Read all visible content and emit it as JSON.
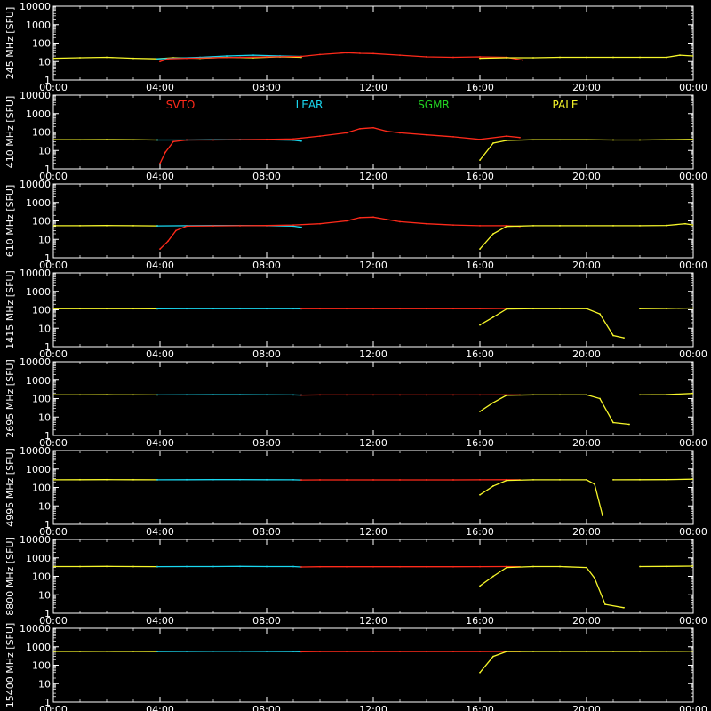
{
  "colors": {
    "background": "#000000",
    "axes": "#ffffff",
    "SVTO": "#ff2a1a",
    "LEAR": "#1ad8f0",
    "SGMR": "#22d422",
    "PALE": "#f6f62a"
  },
  "x_ticks": [
    "00:00",
    "04:00",
    "08:00",
    "12:00",
    "16:00",
    "20:00",
    "00:00"
  ],
  "y_ticks": [
    "1",
    "10",
    "100",
    "1000",
    "10000"
  ],
  "legend": [
    {
      "name": "SVTO",
      "color": "#ff2a1a"
    },
    {
      "name": "LEAR",
      "color": "#1ad8f0"
    },
    {
      "name": "SGMR",
      "color": "#22d422"
    },
    {
      "name": "PALE",
      "color": "#f6f62a"
    }
  ],
  "chart_data": [
    {
      "type": "line",
      "ylabel": "245 MHz [SFU]",
      "x_unit": "hours UT",
      "xlim": [
        0,
        24
      ],
      "ylim": [
        1,
        10000
      ],
      "y_scale": "log",
      "grid": false,
      "series": [
        {
          "name": "PALE",
          "x": [
            0,
            1,
            2,
            3,
            3.9,
            4.5,
            5.5,
            6.5,
            7.5,
            8.5,
            9.3
          ],
          "y": [
            15,
            16,
            17,
            15,
            14,
            16,
            15,
            17,
            16,
            18,
            17
          ]
        },
        {
          "name": "LEAR",
          "x": [
            3.9,
            4.5,
            5.5,
            6.5,
            7.5,
            8.5,
            9.3
          ],
          "y": [
            14,
            15,
            17,
            20,
            22,
            20,
            19
          ]
        },
        {
          "name": "SVTO",
          "x": [
            4.0,
            4.3,
            5.0,
            6.0,
            7.0,
            8.0,
            9.3,
            10.0,
            11.0,
            11.5,
            12.0,
            13.0,
            14.0,
            15.0,
            16.0,
            17.0,
            17.6
          ],
          "y": [
            10,
            14,
            15,
            16,
            17,
            18,
            19,
            24,
            30,
            28,
            27,
            22,
            18,
            17,
            18,
            17,
            12
          ]
        },
        {
          "name": "PALE",
          "x": [
            16.0,
            17.0,
            18.0,
            19.0,
            20.0,
            21.0,
            22.0,
            23.0,
            23.5,
            24
          ],
          "y": [
            15,
            16,
            16,
            17,
            17,
            17,
            17,
            17,
            22,
            20
          ]
        }
      ]
    },
    {
      "type": "line",
      "ylabel": "410 MHz [SFU]",
      "x_unit": "hours UT",
      "xlim": [
        0,
        24
      ],
      "ylim": [
        1,
        10000
      ],
      "y_scale": "log",
      "grid": false,
      "series": [
        {
          "name": "PALE",
          "x": [
            0,
            1,
            2,
            3,
            3.9
          ],
          "y": [
            38,
            38,
            39,
            38,
            37
          ]
        },
        {
          "name": "LEAR",
          "x": [
            3.9,
            5,
            6,
            7,
            8,
            9,
            9.3
          ],
          "y": [
            37,
            37,
            38,
            39,
            38,
            36,
            32
          ]
        },
        {
          "name": "SVTO",
          "x": [
            4.0,
            4.2,
            4.5,
            5,
            6,
            7,
            8,
            9,
            10,
            11,
            11.5,
            12,
            12.5,
            13,
            14,
            15,
            16,
            17,
            17.5
          ],
          "y": [
            2,
            8,
            30,
            37,
            37,
            38,
            40,
            42,
            60,
            90,
            150,
            170,
            110,
            90,
            70,
            55,
            40,
            60,
            50
          ]
        },
        {
          "name": "PALE",
          "x": [
            16.0,
            16.5,
            17.0,
            18.0,
            19.0,
            20.0,
            21.0,
            22.0,
            23.0,
            24
          ],
          "y": [
            3,
            25,
            35,
            38,
            38,
            38,
            37,
            37,
            38,
            40
          ]
        }
      ]
    },
    {
      "type": "line",
      "ylabel": "610 MHz [SFU]",
      "x_unit": "hours UT",
      "xlim": [
        0,
        24
      ],
      "ylim": [
        1,
        10000
      ],
      "y_scale": "log",
      "grid": false,
      "series": [
        {
          "name": "PALE",
          "x": [
            0,
            1,
            2,
            3,
            3.9
          ],
          "y": [
            55,
            55,
            56,
            55,
            54
          ]
        },
        {
          "name": "LEAR",
          "x": [
            3.9,
            5,
            6,
            7,
            8,
            9,
            9.3
          ],
          "y": [
            54,
            55,
            56,
            56,
            55,
            52,
            45
          ]
        },
        {
          "name": "SVTO",
          "x": [
            4.0,
            4.3,
            4.6,
            5,
            6,
            7,
            8,
            9,
            10,
            11,
            11.5,
            12,
            12.5,
            13,
            14,
            15,
            16,
            17,
            17.5
          ],
          "y": [
            3,
            8,
            30,
            52,
            54,
            55,
            56,
            60,
            70,
            100,
            150,
            160,
            120,
            90,
            70,
            60,
            55,
            55,
            50
          ]
        },
        {
          "name": "PALE",
          "x": [
            16.0,
            16.5,
            17.0,
            18.0,
            19.0,
            20.0,
            21.0,
            22.0,
            23.0,
            23.7,
            24
          ],
          "y": [
            3,
            20,
            50,
            55,
            55,
            55,
            55,
            55,
            57,
            70,
            60
          ]
        }
      ]
    },
    {
      "type": "line",
      "ylabel": "1415 MHz [SFU]",
      "x_unit": "hours UT",
      "xlim": [
        0,
        24
      ],
      "ylim": [
        1,
        10000
      ],
      "y_scale": "log",
      "grid": false,
      "series": [
        {
          "name": "PALE",
          "x": [
            0,
            1,
            2,
            3,
            3.9
          ],
          "y": [
            115,
            115,
            116,
            115,
            114
          ]
        },
        {
          "name": "LEAR",
          "x": [
            3.9,
            5,
            6,
            7,
            8,
            9,
            9.3
          ],
          "y": [
            114,
            115,
            115,
            116,
            115,
            115,
            114
          ]
        },
        {
          "name": "SVTO",
          "x": [
            9.3,
            10,
            11,
            12,
            13,
            14,
            15,
            16,
            17,
            17.5
          ],
          "y": [
            115,
            115,
            115,
            115,
            115,
            115,
            115,
            116,
            118,
            115
          ]
        },
        {
          "name": "PALE",
          "x": [
            16.0,
            16.5,
            17.0,
            18.0,
            19.0,
            20.0,
            20.5,
            21.0,
            21.4
          ],
          "y": [
            15,
            40,
            110,
            115,
            115,
            115,
            60,
            4,
            3
          ]
        },
        {
          "name": "PALE",
          "x": [
            22.0,
            23.0,
            24
          ],
          "y": [
            115,
            118,
            125
          ]
        }
      ]
    },
    {
      "type": "line",
      "ylabel": "2695 MHz [SFU]",
      "x_unit": "hours UT",
      "xlim": [
        0,
        24
      ],
      "ylim": [
        1,
        10000
      ],
      "y_scale": "log",
      "grid": false,
      "series": [
        {
          "name": "PALE",
          "x": [
            0,
            1,
            2,
            3,
            3.9
          ],
          "y": [
            160,
            160,
            162,
            160,
            158
          ]
        },
        {
          "name": "LEAR",
          "x": [
            3.9,
            5,
            6,
            7,
            8,
            9,
            9.3
          ],
          "y": [
            158,
            160,
            162,
            162,
            160,
            158,
            155
          ]
        },
        {
          "name": "SVTO",
          "x": [
            9.3,
            10,
            11,
            12,
            13,
            14,
            15,
            16,
            17,
            17.5
          ],
          "y": [
            155,
            158,
            158,
            158,
            157,
            157,
            157,
            158,
            160,
            158
          ]
        },
        {
          "name": "PALE",
          "x": [
            16.0,
            16.5,
            17.0,
            18.0,
            19.0,
            20.0,
            20.5,
            21.0,
            21.6
          ],
          "y": [
            20,
            60,
            150,
            160,
            160,
            160,
            100,
            5,
            4
          ]
        },
        {
          "name": "PALE",
          "x": [
            22.0,
            23.0,
            24
          ],
          "y": [
            160,
            165,
            190
          ]
        }
      ]
    },
    {
      "type": "line",
      "ylabel": "4995 MHz [SFU]",
      "x_unit": "hours UT",
      "xlim": [
        0,
        24
      ],
      "ylim": [
        1,
        10000
      ],
      "y_scale": "log",
      "grid": false,
      "series": [
        {
          "name": "PALE",
          "x": [
            0,
            1,
            2,
            3,
            3.9
          ],
          "y": [
            260,
            262,
            265,
            262,
            260
          ]
        },
        {
          "name": "LEAR",
          "x": [
            3.9,
            5,
            6,
            7,
            8,
            9,
            9.3
          ],
          "y": [
            260,
            262,
            265,
            265,
            262,
            260,
            255
          ]
        },
        {
          "name": "SVTO",
          "x": [
            9.3,
            10,
            11,
            12,
            13,
            14,
            15,
            16,
            17,
            17.5
          ],
          "y": [
            255,
            258,
            258,
            258,
            258,
            258,
            258,
            260,
            262,
            260
          ]
        },
        {
          "name": "PALE",
          "x": [
            16.0,
            16.5,
            17.0,
            18.0,
            19.0,
            20.0,
            20.3,
            20.6
          ],
          "y": [
            40,
            120,
            240,
            260,
            260,
            260,
            150,
            3
          ]
        },
        {
          "name": "PALE",
          "x": [
            21.0,
            22.0,
            23.0,
            24
          ],
          "y": [
            260,
            262,
            265,
            280
          ]
        }
      ]
    },
    {
      "type": "line",
      "ylabel": "8800 MHz [SFU]",
      "x_unit": "hours UT",
      "xlim": [
        0,
        24
      ],
      "ylim": [
        1,
        10000
      ],
      "y_scale": "log",
      "grid": false,
      "series": [
        {
          "name": "PALE",
          "x": [
            0,
            1,
            2,
            3,
            3.9
          ],
          "y": [
            340,
            340,
            345,
            340,
            335
          ]
        },
        {
          "name": "LEAR",
          "x": [
            3.9,
            5,
            6,
            7,
            8,
            9,
            9.3
          ],
          "y": [
            335,
            338,
            340,
            345,
            340,
            338,
            320
          ]
        },
        {
          "name": "SVTO",
          "x": [
            9.3,
            10,
            11,
            12,
            13,
            14,
            15,
            16,
            17,
            17.5
          ],
          "y": [
            320,
            330,
            330,
            330,
            330,
            330,
            330,
            335,
            340,
            330
          ]
        },
        {
          "name": "PALE",
          "x": [
            16.0,
            16.5,
            17.0,
            18.0,
            19.0,
            20.0,
            20.3,
            20.7,
            21.4
          ],
          "y": [
            30,
            100,
            300,
            340,
            340,
            300,
            80,
            3,
            2
          ]
        },
        {
          "name": "PALE",
          "x": [
            22.0,
            23.0,
            24
          ],
          "y": [
            340,
            345,
            360
          ]
        }
      ]
    },
    {
      "type": "line",
      "ylabel": "15400 MHz [SFU]",
      "x_unit": "hours UT",
      "xlim": [
        0,
        24
      ],
      "ylim": [
        1,
        10000
      ],
      "y_scale": "log",
      "grid": false,
      "series": [
        {
          "name": "PALE",
          "x": [
            0,
            1,
            2,
            3,
            3.9
          ],
          "y": [
            560,
            560,
            565,
            560,
            555
          ]
        },
        {
          "name": "LEAR",
          "x": [
            3.9,
            5,
            6,
            7,
            8,
            9,
            9.3
          ],
          "y": [
            555,
            560,
            565,
            565,
            560,
            555,
            540
          ]
        },
        {
          "name": "SVTO",
          "x": [
            9.3,
            10,
            11,
            12,
            13,
            14,
            15,
            16,
            17,
            17.5
          ],
          "y": [
            540,
            550,
            550,
            550,
            550,
            550,
            550,
            555,
            560,
            555
          ]
        },
        {
          "name": "PALE",
          "x": [
            16.0,
            16.5,
            17.0,
            18.0,
            19.0,
            20.0,
            21.0,
            22.0,
            23.0,
            24
          ],
          "y": [
            40,
            300,
            550,
            560,
            560,
            560,
            560,
            560,
            565,
            580
          ]
        }
      ]
    }
  ]
}
